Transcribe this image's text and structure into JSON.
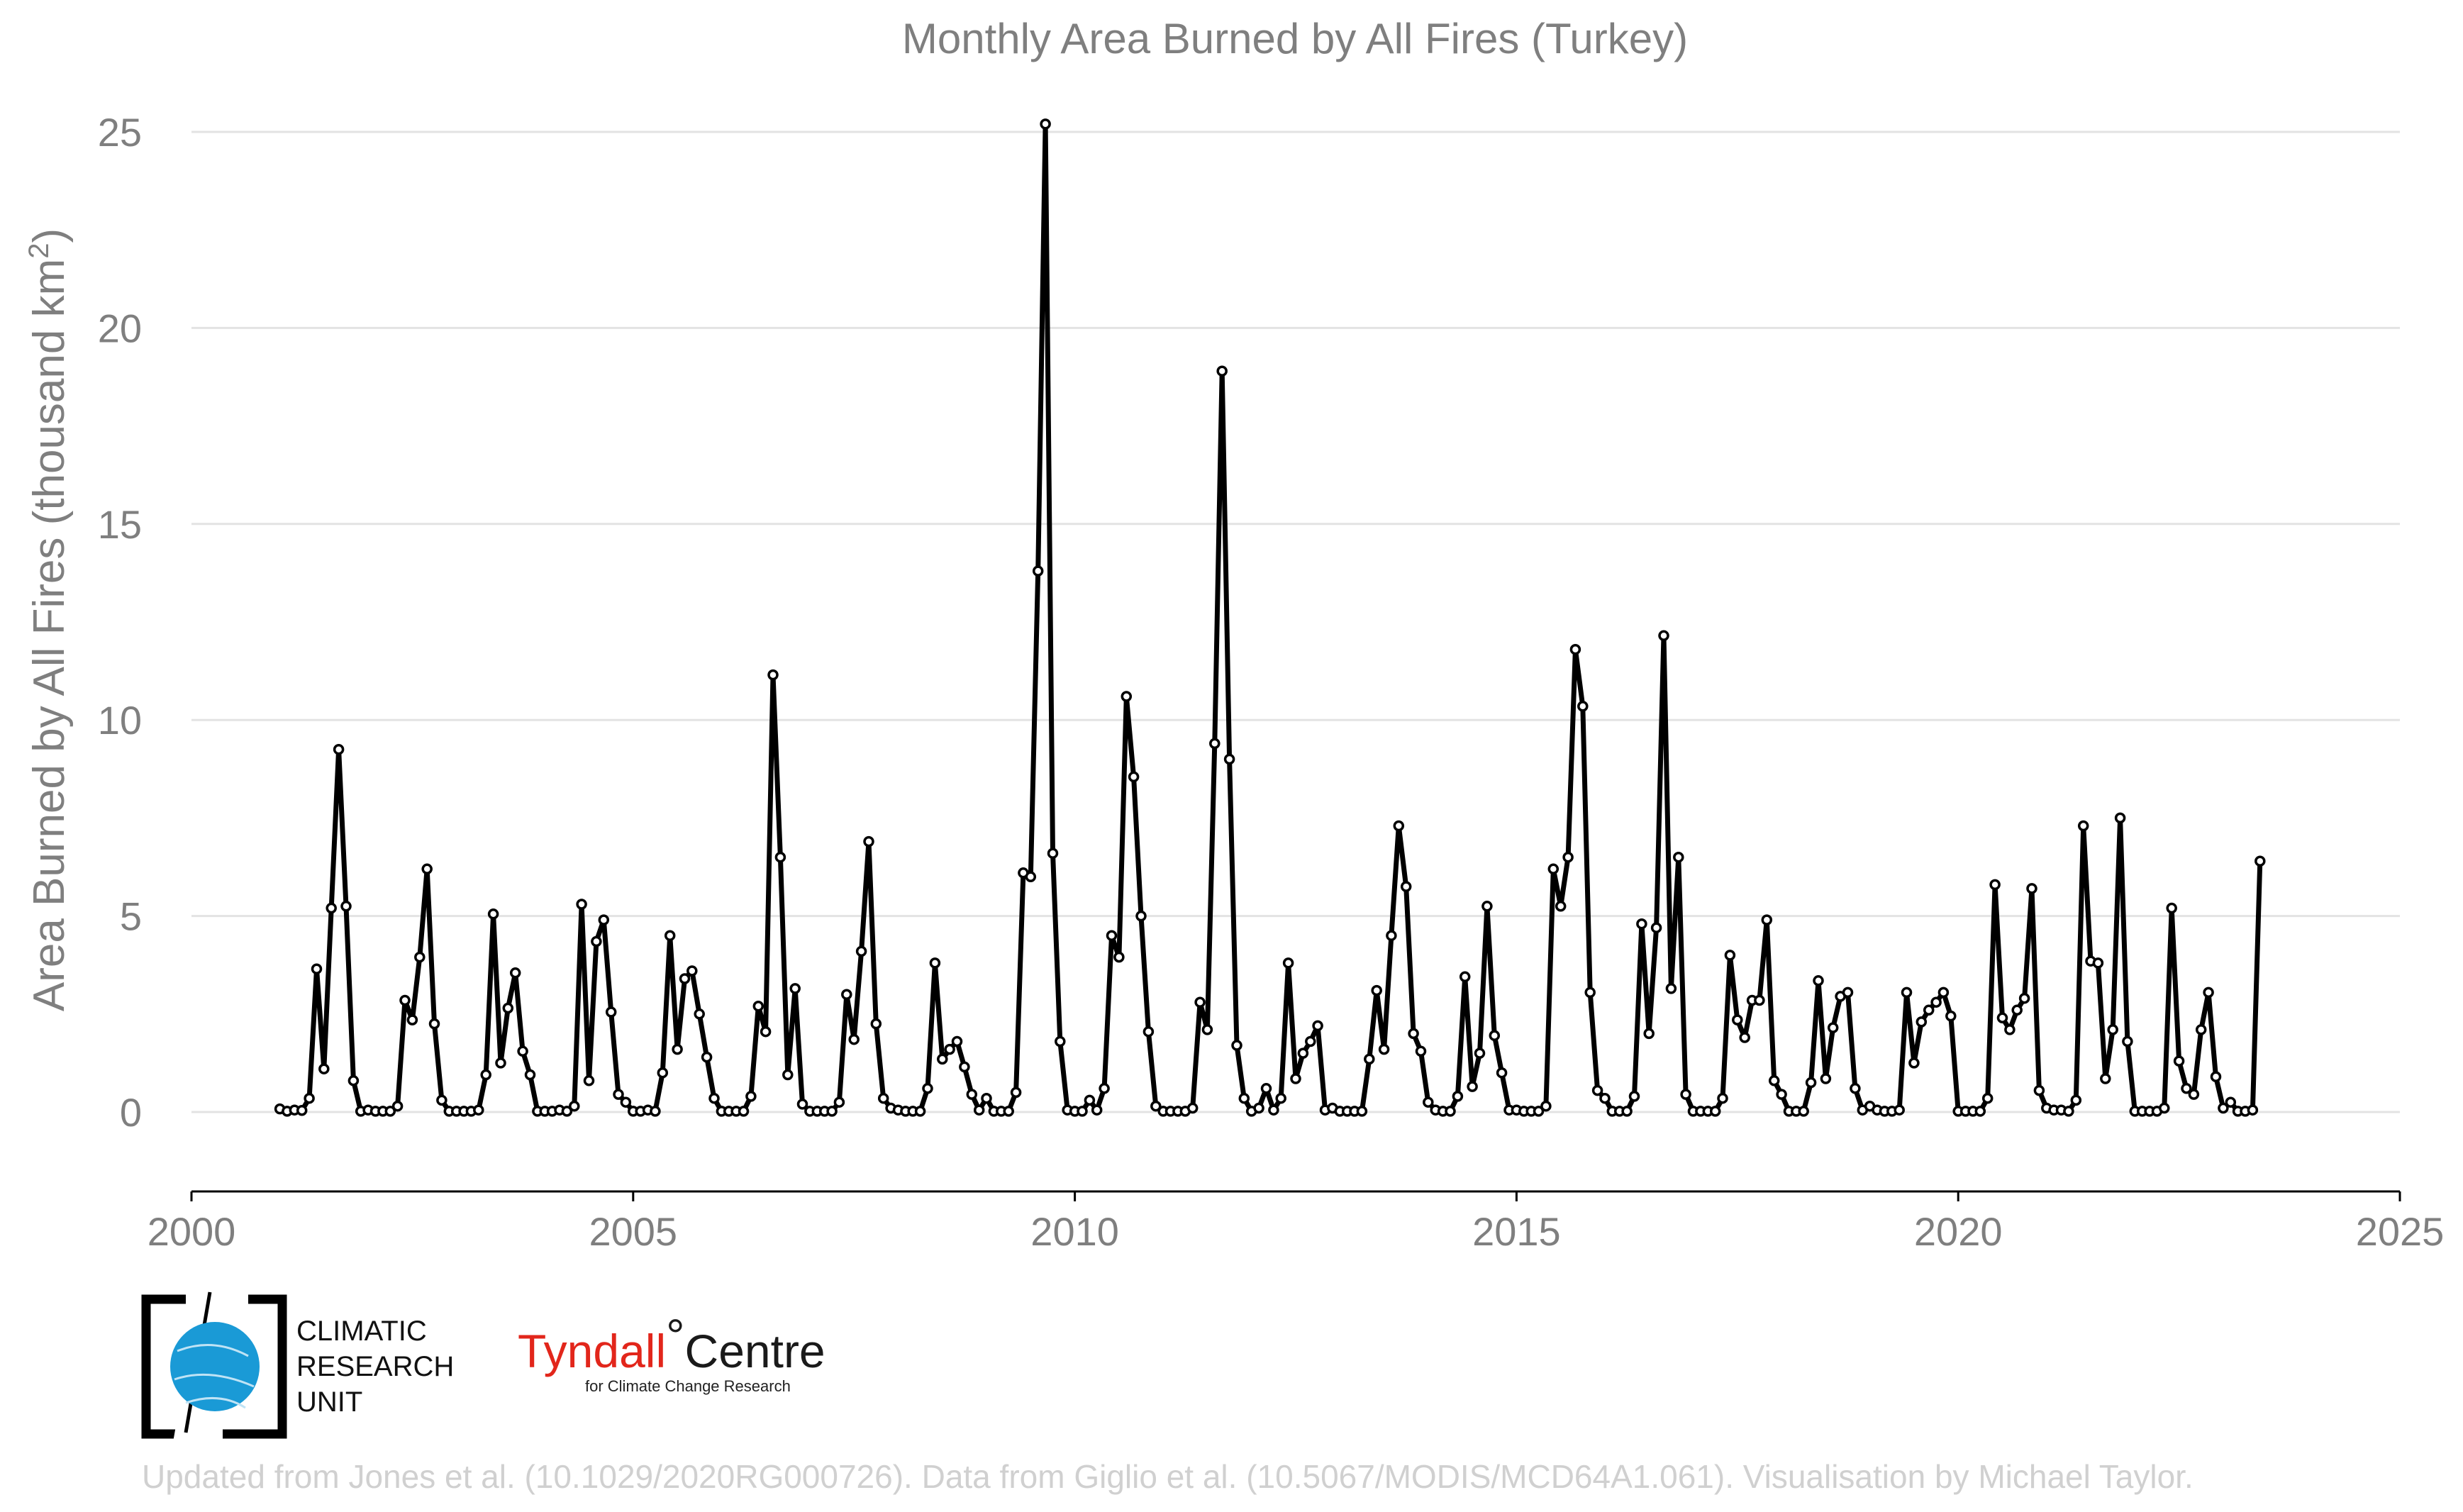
{
  "chart_data": {
    "type": "line",
    "title": "Monthly Area Burned by All Fires (Turkey)",
    "ylabel_main": "Area Burned by All Fires (thousand km",
    "ylabel_sup": "2",
    "ylabel_close": ")",
    "xlabel": "",
    "xlim": [
      2000,
      2025
    ],
    "ylim": [
      -2,
      25.5
    ],
    "xticks": [
      "2000",
      "2005",
      "2010",
      "2015",
      "2020",
      "2025"
    ],
    "yticks": [
      "0",
      "5",
      "10",
      "15",
      "20",
      "25"
    ],
    "grid": true,
    "series": [
      {
        "start": "2001-01",
        "values": [
          0.08,
          0.02,
          0.05,
          0.04,
          0.35,
          3.65,
          1.1,
          5.2,
          9.25,
          5.25,
          0.8,
          0.02,
          0.05,
          0.02,
          0.02,
          0.02,
          0.15,
          2.85,
          2.35,
          3.95,
          6.2,
          2.25,
          0.3,
          0.02,
          0.02,
          0.02,
          0.02,
          0.05,
          0.95,
          5.05,
          1.25,
          2.65,
          3.55,
          1.55,
          0.95,
          0.02,
          0.02,
          0.02,
          0.05,
          0.02,
          0.15,
          5.3,
          0.8,
          4.35,
          4.9,
          2.55,
          0.45,
          0.25,
          0.02,
          0.02,
          0.05,
          0.02,
          1.0,
          4.5,
          1.6,
          3.4,
          3.6,
          2.5,
          1.4,
          0.35,
          0.02,
          0.02,
          0.02,
          0.02,
          0.4,
          2.7,
          2.05,
          11.15,
          6.5,
          0.95,
          3.15,
          0.2,
          0.02,
          0.02,
          0.02,
          0.02,
          0.25,
          3.0,
          1.85,
          4.1,
          6.9,
          2.25,
          0.35,
          0.1,
          0.05,
          0.02,
          0.02,
          0.02,
          0.6,
          3.8,
          1.35,
          1.6,
          1.8,
          1.15,
          0.45,
          0.05,
          0.35,
          0.02,
          0.02,
          0.02,
          0.5,
          6.1,
          6.0,
          13.8,
          25.2,
          6.6,
          1.8,
          0.05,
          0.02,
          0.02,
          0.3,
          0.05,
          0.6,
          4.5,
          3.95,
          10.6,
          8.55,
          5.0,
          2.05,
          0.15,
          0.02,
          0.02,
          0.02,
          0.02,
          0.1,
          2.8,
          2.1,
          9.4,
          18.9,
          9.0,
          1.7,
          0.35,
          0.02,
          0.1,
          0.6,
          0.05,
          0.35,
          3.8,
          0.85,
          1.5,
          1.8,
          2.2,
          0.05,
          0.1,
          0.02,
          0.02,
          0.02,
          0.02,
          1.35,
          3.1,
          1.6,
          4.5,
          7.3,
          5.75,
          2.0,
          1.55,
          0.25,
          0.05,
          0.02,
          0.02,
          0.4,
          3.45,
          0.65,
          1.5,
          5.25,
          1.95,
          1.0,
          0.05,
          0.05,
          0.02,
          0.02,
          0.02,
          0.15,
          6.2,
          5.25,
          6.5,
          11.8,
          10.35,
          3.05,
          0.55,
          0.35,
          0.02,
          0.02,
          0.02,
          0.4,
          4.8,
          2.0,
          4.7,
          12.15,
          3.15,
          6.5,
          0.45,
          0.02,
          0.02,
          0.02,
          0.02,
          0.35,
          4.0,
          2.35,
          1.9,
          2.85,
          2.85,
          4.9,
          0.8,
          0.45,
          0.02,
          0.02,
          0.02,
          0.75,
          3.35,
          0.85,
          2.15,
          2.95,
          3.05,
          0.6,
          0.05,
          0.15,
          0.05,
          0.02,
          0.02,
          0.05,
          3.05,
          1.25,
          2.3,
          2.6,
          2.8,
          3.05,
          2.45,
          0.02,
          0.02,
          0.02,
          0.02,
          0.35,
          5.8,
          2.4,
          2.1,
          2.6,
          2.9,
          5.7,
          0.55,
          0.1,
          0.05,
          0.05,
          0.02,
          0.3,
          7.3,
          3.85,
          3.8,
          0.85,
          2.1,
          7.5,
          1.8,
          0.02,
          0.02,
          0.02,
          0.02,
          0.1,
          5.2,
          1.3,
          0.6,
          0.45,
          2.1,
          3.05,
          0.9,
          0.1,
          0.25,
          0.02,
          0.02,
          0.05,
          6.4
        ]
      }
    ]
  },
  "logos": {
    "cru_line1": "CLIMATIC",
    "cru_line2": "RESEARCH",
    "cru_line3": "UNIT",
    "tyndall_red": "Tyndall",
    "tyndall_degree": "°",
    "tyndall_dark": "Centre",
    "tyndall_sub": "for Climate Change Research"
  },
  "credit": "Updated from Jones et al. (10.1029/2020RG000726). Data from Giglio et al. (10.5067/MODIS/MCD64A1.061). Visualisation by Michael Taylor."
}
